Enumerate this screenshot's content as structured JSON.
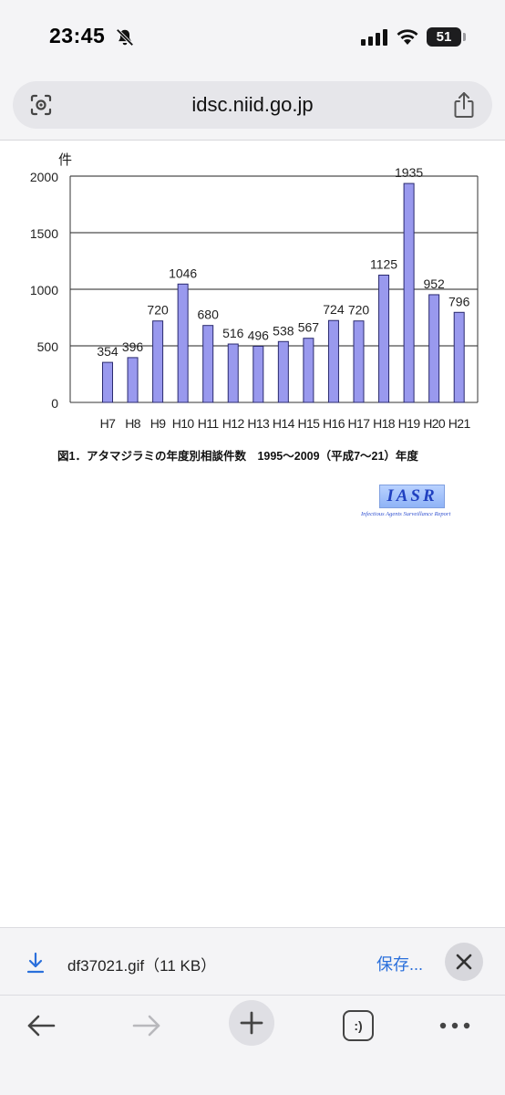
{
  "status": {
    "time": "23:45",
    "battery": "51",
    "battery_level": 0.51
  },
  "browser": {
    "url": "idsc.niid.go.jp"
  },
  "figure": {
    "caption": "図1．アタマジラミの年度別相談件数　1995～2009（平成7～21）年度",
    "logo_text": "IASR",
    "logo_subtitle": "Infectious Agents Surveillance Report"
  },
  "chart_data": {
    "type": "bar",
    "title": "",
    "ylabel": "件",
    "xlabel": "",
    "ylim": [
      0,
      2000
    ],
    "yticks": [
      0,
      500,
      1000,
      1500,
      2000
    ],
    "grid": true,
    "categories": [
      "H7",
      "H8",
      "H9",
      "H10",
      "H11",
      "H12",
      "H13",
      "H14",
      "H15",
      "H16",
      "H17",
      "H18",
      "H19",
      "H20",
      "H21"
    ],
    "values": [
      354,
      396,
      720,
      1046,
      680,
      516,
      496,
      538,
      567,
      724,
      720,
      1125,
      1935,
      952,
      796
    ],
    "bar_color": "#9999ee",
    "bar_edge_color": "#2a2a6e"
  },
  "download": {
    "file_name": "df37021.gif（11 KB）",
    "save_label": "保存..."
  },
  "toolbar": {
    "tabs_label": ":)"
  }
}
